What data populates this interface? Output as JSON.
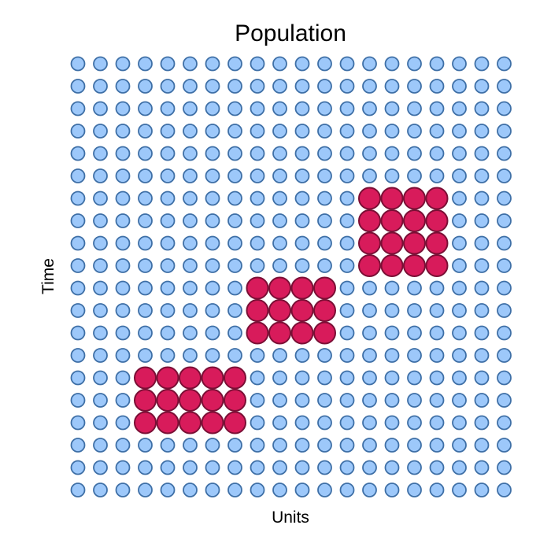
{
  "chart_data": {
    "type": "heatmap",
    "title": "Population",
    "xlabel": "Units",
    "ylabel": "Time",
    "grid": false,
    "legend": "none",
    "n_cols": 20,
    "n_rows": 20,
    "highlight_blocks": [
      {
        "col_start": 13,
        "col_end": 16,
        "row_start": 6,
        "row_end": 9
      },
      {
        "col_start": 8,
        "col_end": 11,
        "row_start": 10,
        "row_end": 12
      },
      {
        "col_start": 3,
        "col_end": 7,
        "row_start": 14,
        "row_end": 16
      }
    ],
    "colors": {
      "base_fill": "#9dc8fa",
      "base_stroke": "#3e6fa6",
      "highlight_fill": "#d81b5b",
      "highlight_stroke": "#7a0f35"
    }
  }
}
